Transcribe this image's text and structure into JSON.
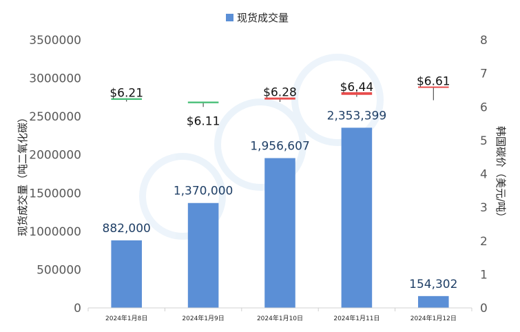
{
  "chart_data": {
    "type": "bar",
    "legend": {
      "label": "现货成交量",
      "placement": "top-center",
      "color": "#5b8fd6"
    },
    "categories": [
      "2024年1月8日",
      "2024年1月9日",
      "2024年1月10日",
      "2024年1月11日",
      "2024年1月12日"
    ],
    "series": [
      {
        "name": "现货成交量",
        "type": "bar",
        "axis": "left",
        "color": "#5b8fd6",
        "values": [
          882000,
          1370000,
          1956607,
          2353399,
          154302
        ],
        "labels": [
          "882,000",
          "1,370,000",
          "1,956,607",
          "2,353,399",
          "154,302"
        ]
      },
      {
        "type": "candlestick",
        "axis": "right",
        "up_color": "#e84c4c",
        "down_color": "#4cc07a",
        "open": [
          6.26,
          6.16,
          6.22,
          6.36,
          6.61
        ],
        "close": [
          6.21,
          6.11,
          6.28,
          6.44,
          6.61
        ],
        "high": [
          6.26,
          6.16,
          6.28,
          6.5,
          6.61
        ],
        "low": [
          6.16,
          6.0,
          6.15,
          6.3,
          6.2
        ],
        "labels": [
          "$6.21",
          "$6.11",
          "$6.28",
          "$6.44",
          "$6.61"
        ]
      }
    ],
    "ylabel_left": "现货成交量（吨二氧化碳）",
    "ylabel_right": "韩国碳价（美元/吨）",
    "ylim_left": [
      0,
      3500000
    ],
    "yticks_left": [
      "0",
      "500000",
      "1000000",
      "1500000",
      "2000000",
      "2500000",
      "3000000",
      "3500000"
    ],
    "ylim_right": [
      0,
      8
    ],
    "yticks_right": [
      "0",
      "1",
      "2",
      "3",
      "4",
      "5",
      "6",
      "7",
      "8"
    ],
    "grid": false
  }
}
